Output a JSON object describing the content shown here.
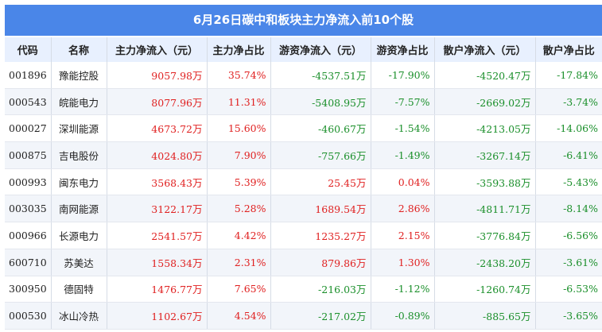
{
  "title": "6月26日碳中和板块主力净流入前10个股",
  "columns": [
    "代码",
    "名称",
    "主力净流入（元）",
    "主力净占比",
    "游资净流入（元）",
    "游资净占比",
    "散户净流入（元）",
    "散户净占比"
  ],
  "colors": {
    "header_bg": "#4a86e8",
    "positive": "#e02020",
    "negative": "#1a8f2a"
  },
  "rows": [
    {
      "code": "001896",
      "name": "豫能控股",
      "main_in": "9057.98万",
      "main_pct": "35.74%",
      "hot_in": "-4537.51万",
      "hot_pct": "-17.90%",
      "retail_in": "-4520.47万",
      "retail_pct": "-17.84%"
    },
    {
      "code": "000543",
      "name": "皖能电力",
      "main_in": "8077.96万",
      "main_pct": "11.31%",
      "hot_in": "-5408.95万",
      "hot_pct": "-7.57%",
      "retail_in": "-2669.02万",
      "retail_pct": "-3.74%"
    },
    {
      "code": "000027",
      "name": "深圳能源",
      "main_in": "4673.72万",
      "main_pct": "15.60%",
      "hot_in": "-460.67万",
      "hot_pct": "-1.54%",
      "retail_in": "-4213.05万",
      "retail_pct": "-14.06%"
    },
    {
      "code": "000875",
      "name": "吉电股份",
      "main_in": "4024.80万",
      "main_pct": "7.90%",
      "hot_in": "-757.66万",
      "hot_pct": "-1.49%",
      "retail_in": "-3267.14万",
      "retail_pct": "-6.41%"
    },
    {
      "code": "000993",
      "name": "闽东电力",
      "main_in": "3568.43万",
      "main_pct": "5.39%",
      "hot_in": "25.45万",
      "hot_pct": "0.04%",
      "retail_in": "-3593.88万",
      "retail_pct": "-5.43%"
    },
    {
      "code": "003035",
      "name": "南网能源",
      "main_in": "3122.17万",
      "main_pct": "5.28%",
      "hot_in": "1689.54万",
      "hot_pct": "2.86%",
      "retail_in": "-4811.71万",
      "retail_pct": "-8.14%"
    },
    {
      "code": "000966",
      "name": "长源电力",
      "main_in": "2541.57万",
      "main_pct": "4.42%",
      "hot_in": "1235.27万",
      "hot_pct": "2.15%",
      "retail_in": "-3776.84万",
      "retail_pct": "-6.56%"
    },
    {
      "code": "600710",
      "name": "苏美达",
      "main_in": "1558.34万",
      "main_pct": "2.31%",
      "hot_in": "879.86万",
      "hot_pct": "1.30%",
      "retail_in": "-2438.20万",
      "retail_pct": "-3.61%"
    },
    {
      "code": "300950",
      "name": "德固特",
      "main_in": "1476.77万",
      "main_pct": "7.65%",
      "hot_in": "-216.03万",
      "hot_pct": "-1.12%",
      "retail_in": "-1260.74万",
      "retail_pct": "-6.53%"
    },
    {
      "code": "000530",
      "name": "冰山冷热",
      "main_in": "1102.67万",
      "main_pct": "4.54%",
      "hot_in": "-217.02万",
      "hot_pct": "-0.89%",
      "retail_in": "-885.65万",
      "retail_pct": "-3.65%"
    }
  ]
}
